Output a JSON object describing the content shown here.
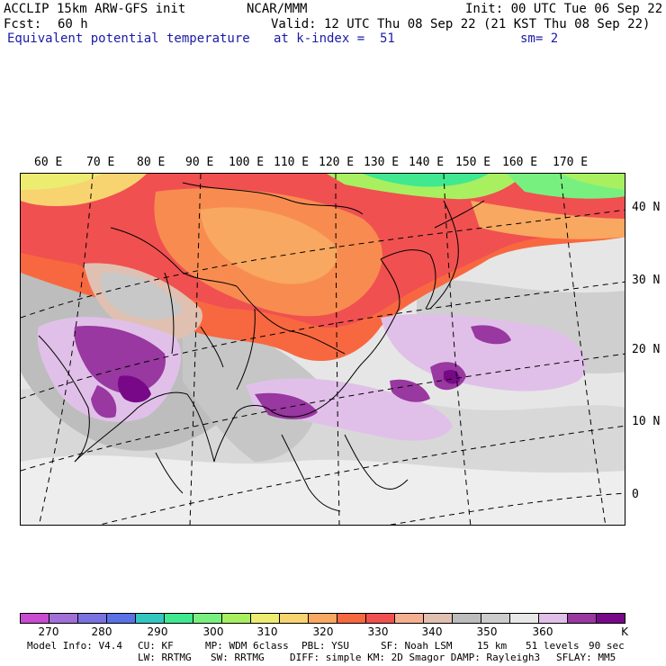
{
  "header": {
    "model_line": "ACCLIP 15km ARW-GFS init",
    "forecast_label": "Fcst:",
    "forecast_value": "60 h",
    "field_name": "Equivalent potential temperature",
    "org": "NCAR/MMM",
    "init": "Init: 00 UTC Tue 06 Sep 22",
    "valid": "Valid: 12 UTC Thu 08 Sep 22 (21 KST Thu 08 Sep 22)",
    "level": "at k-index =  51",
    "smoothing": "sm= 2"
  },
  "map": {
    "lon_labels": [
      "60 E",
      "70 E",
      "80 E",
      "90 E",
      "100 E",
      "110 E",
      "120 E",
      "130 E",
      "140 E",
      "150 E",
      "160 E",
      "170 E"
    ],
    "lat_labels": [
      "40 N",
      "30 N",
      "20 N",
      "10 N",
      "0"
    ]
  },
  "colorbar": {
    "colors": [
      "#c84bd0",
      "#a070d8",
      "#7a72e0",
      "#5a72e6",
      "#34c6c0",
      "#40e890",
      "#78f080",
      "#a8f060",
      "#ecec70",
      "#f8d470",
      "#f8a860",
      "#f86840",
      "#f05050",
      "#f4b090",
      "#e0c0b0",
      "#bcbcbc",
      "#cccccc",
      "#e8e8e8",
      "#e0c0e8",
      "#9838a0",
      "#780888"
    ],
    "tick_labels": [
      "270",
      "280",
      "290",
      "300",
      "310",
      "320",
      "330",
      "340",
      "350",
      "360",
      "K"
    ]
  },
  "footer": {
    "line1": [
      {
        "label": "Model Info: V4.4"
      },
      {
        "label": "CU: KF"
      },
      {
        "label": "MP: WDM 6class"
      },
      {
        "label": "PBL: YSU"
      },
      {
        "label": "SF: Noah LSM"
      },
      {
        "label": "15 km"
      },
      {
        "label": "51 levels"
      },
      {
        "label": "90 sec"
      }
    ],
    "line2": [
      {
        "label": "LW: RRTMG"
      },
      {
        "label": "SW: RRTMG"
      },
      {
        "label": "DIFF: simple KM: 2D Smagor DAMP: Rayleigh3"
      },
      {
        "label": "SFLAY: MM5"
      }
    ]
  }
}
